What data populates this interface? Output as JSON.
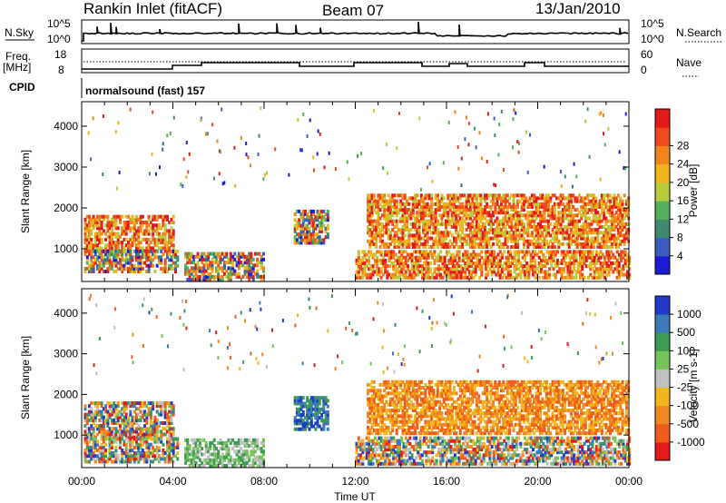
{
  "header": {
    "station": "Rankin Inlet (fitACF)",
    "beam": "Beam 07",
    "date": "13/Jan/2010"
  },
  "strip": {
    "nsky_label": "N.Sky",
    "nsky_ticks": [
      "10^5",
      "10^0"
    ],
    "nsearch_label": "N.Search",
    "nsearch_ticks": [
      "10^5",
      "10^0"
    ],
    "freq_label": "Freq.",
    "freq_unit": "[MHz]",
    "freq_ticks": [
      "18",
      "8"
    ],
    "nave_label": "Nave",
    "nave_ticks": [
      "60",
      "0"
    ],
    "cpid_label": "CPID",
    "cpid_value": "normalsound (fast) 157"
  },
  "chart_data": [
    {
      "type": "heatmap",
      "name": "power-panel",
      "ylabel": "Slant Range [km]",
      "ylim": [
        200,
        4600
      ],
      "yticks": [
        "1000",
        "2000",
        "3000",
        "4000"
      ],
      "xticks": [
        "00:00",
        "04:00",
        "08:00",
        "12:00",
        "16:00",
        "20:00",
        "00:00"
      ],
      "xlim_hours": [
        0,
        24
      ],
      "colorbar": {
        "label": "Power [dB]",
        "ticks": [
          "4",
          "8",
          "12",
          "16",
          "20",
          "24",
          "28"
        ],
        "colors": [
          "#1c1cd8",
          "#3a5fc0",
          "#3f8a6e",
          "#56b15a",
          "#b9cc3a",
          "#f0b41c",
          "#f3831d",
          "#ef4a1c",
          "#e21a1a"
        ]
      },
      "bands": [
        {
          "t0": 0.1,
          "t1": 4.0,
          "r0": 900,
          "r1": 1800,
          "level": "high"
        },
        {
          "t0": 0.1,
          "t1": 4.2,
          "r0": 400,
          "r1": 900,
          "level": "mixed"
        },
        {
          "t0": 4.5,
          "t1": 8.0,
          "r0": 200,
          "r1": 900,
          "level": "mixed"
        },
        {
          "t0": 9.3,
          "t1": 10.8,
          "r0": 1100,
          "r1": 1900,
          "level": "mixed"
        },
        {
          "t0": 12.5,
          "t1": 24.0,
          "r0": 1000,
          "r1": 2300,
          "level": "high"
        },
        {
          "t0": 12.0,
          "t1": 24.0,
          "r0": 250,
          "r1": 900,
          "level": "high"
        }
      ]
    },
    {
      "type": "heatmap",
      "name": "velocity-panel",
      "ylabel": "Slant Range [km]",
      "ylim": [
        200,
        4600
      ],
      "yticks": [
        "1000",
        "2000",
        "3000",
        "4000"
      ],
      "xticks": [
        "00:00",
        "04:00",
        "08:00",
        "12:00",
        "16:00",
        "20:00",
        "00:00"
      ],
      "xlabel": "Time UT",
      "xlim_hours": [
        0,
        24
      ],
      "colorbar": {
        "label": "Velocity [m s-1]",
        "ticks": [
          "1000",
          "500",
          "100",
          "25",
          "-25",
          "-100",
          "-500",
          "-1000"
        ],
        "colors": [
          "#1e3cc8",
          "#3a7ab8",
          "#3d9a55",
          "#74c45a",
          "#c0c0c0",
          "#f2b71d",
          "#f2891e",
          "#ef5c1c",
          "#e41b1b"
        ]
      },
      "bands": [
        {
          "t0": 0.1,
          "t1": 4.0,
          "r0": 900,
          "r1": 1800,
          "level": "mixed"
        },
        {
          "t0": 0.1,
          "t1": 4.2,
          "r0": 300,
          "r1": 900,
          "level": "mixed"
        },
        {
          "t0": 4.5,
          "t1": 8.0,
          "r0": 200,
          "r1": 900,
          "level": "greens"
        },
        {
          "t0": 9.3,
          "t1": 10.8,
          "r0": 1100,
          "r1": 1900,
          "level": "blues"
        },
        {
          "t0": 12.5,
          "t1": 24.0,
          "r0": 1000,
          "r1": 2300,
          "level": "oranges"
        },
        {
          "t0": 12.0,
          "t1": 24.0,
          "r0": 250,
          "r1": 900,
          "level": "mixed"
        }
      ]
    }
  ]
}
